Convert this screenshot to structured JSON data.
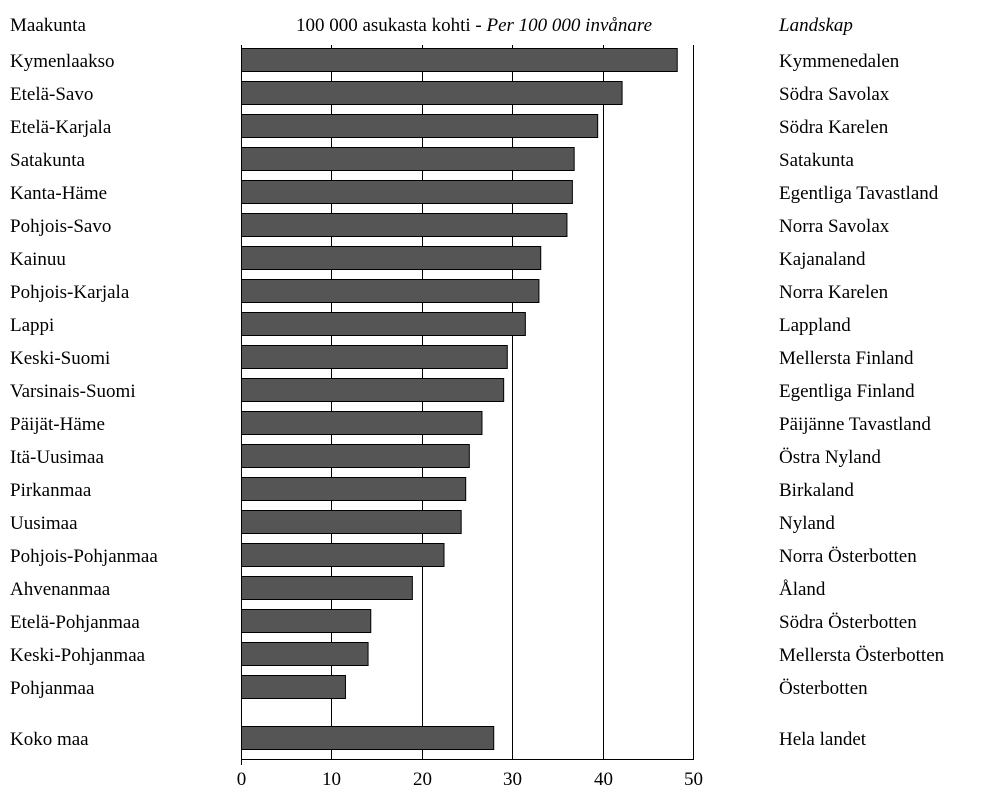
{
  "chart_data": {
    "type": "bar",
    "orientation": "horizontal",
    "header_left": "Maakunta",
    "header_center_fi": "100 000 asukasta kohti",
    "header_sep": " - ",
    "header_center_sv": "Per 100 000 invånare",
    "header_right": "Landskap",
    "categories": [
      "Kymenlaakso",
      "Etelä-Savo",
      "Etelä-Karjala",
      "Satakunta",
      "Kanta-Häme",
      "Pohjois-Savo",
      "Kainuu",
      "Pohjois-Karjala",
      "Lappi",
      "Keski-Suomi",
      "Varsinais-Suomi",
      "Päijät-Häme",
      "Itä-Uusimaa",
      "Pirkanmaa",
      "Uusimaa",
      "Pohjois-Pohjanmaa",
      "Ahvenanmaa",
      "Etelä-Pohjanmaa",
      "Keski-Pohjanmaa",
      "Pohjanmaa",
      "Koko maa"
    ],
    "categories_sv": [
      "Kymmenedalen",
      "Södra Savolax",
      "Södra Karelen",
      "Satakunta",
      "Egentliga Tavastland",
      "Norra Savolax",
      "Kajanaland",
      "Norra Karelen",
      "Lappland",
      "Mellersta Finland",
      "Egentliga Finland",
      "Päijänne Tavastland",
      "Östra Nyland",
      "Birkaland",
      "Nyland",
      "Norra Österbotten",
      "Åland",
      "Södra Österbotten",
      "Mellersta Österbotten",
      "Österbotten",
      "Hela landet"
    ],
    "values": [
      48.2,
      42.1,
      39.4,
      36.8,
      36.6,
      36.0,
      33.1,
      32.9,
      31.4,
      29.4,
      29.0,
      26.6,
      25.2,
      24.8,
      24.3,
      22.4,
      18.9,
      14.3,
      14.0,
      11.5,
      27.9
    ],
    "gap_before_last": true,
    "xlim": [
      0,
      50
    ],
    "xticks": [
      0,
      10,
      20,
      30,
      40,
      50
    ],
    "grid": true,
    "bar_color": "#555555"
  }
}
